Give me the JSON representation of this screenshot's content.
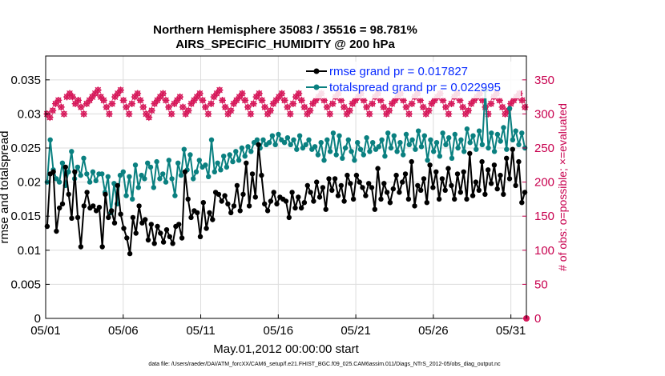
{
  "chart_data": {
    "type": "line",
    "title": [
      "Northern Hemisphere 35083 / 35516 = 98.781%",
      "AIRS_SPECIFIC_HUMIDITY @ 200 hPa"
    ],
    "xlabel": "May.01,2012 00:00:00 start",
    "ylabel": "rmse and totalspread",
    "ylabel_right": "# of obs: o=possible; ×=evaluated",
    "footnote": "data file: /Users/raeder/DAI/ATM_forcXX/CAM6_setup/f.e21.FHIST_BGC.f09_025.CAM6assim.011/Diags_NTrS_2012-05/obs_diag_output.nc",
    "x_tick_labels": [
      "05/01",
      "05/06",
      "05/11",
      "05/16",
      "05/21",
      "05/26",
      "05/31"
    ],
    "x_tick_days": [
      1,
      6,
      11,
      16,
      21,
      26,
      31
    ],
    "xlim": [
      1,
      32
    ],
    "ylim": [
      0,
      0.0385
    ],
    "y_ticks": [
      0,
      0.005,
      0.01,
      0.015,
      0.02,
      0.025,
      0.03,
      0.035
    ],
    "y_tick_labels": [
      "0",
      "0.005",
      "0.01",
      "0.015",
      "0.02",
      "0.025",
      "0.03",
      "0.035"
    ],
    "ylim_right": [
      0,
      385
    ],
    "y_ticks_right": [
      0,
      50,
      100,
      150,
      200,
      250,
      300,
      350
    ],
    "y_tick_labels_right": [
      "0",
      "50",
      "100",
      "150",
      "200",
      "250",
      "300",
      "350"
    ],
    "colors": {
      "rmse": "#000000",
      "spread": "#0a8080",
      "obs": "#d6185a",
      "legend_text": "#0a2cff",
      "right_axis": "#c8004e"
    },
    "series": [
      {
        "name": "rmse grand pr = 0.017827",
        "key": "rmse",
        "values": [
          0.0135,
          0.0212,
          0.0215,
          0.0128,
          0.0162,
          0.0168,
          0.0222,
          0.0182,
          0.0147,
          0.0215,
          0.0148,
          0.0105,
          0.0165,
          0.0185,
          0.0162,
          0.0165,
          0.0158,
          0.0163,
          0.0105,
          0.0182,
          0.0148,
          0.0158,
          0.014,
          0.0195,
          0.0153,
          0.0132,
          0.0118,
          0.0095,
          0.0148,
          0.0125,
          0.0165,
          0.014,
          0.0145,
          0.0115,
          0.0138,
          0.011,
          0.0135,
          0.0125,
          0.0112,
          0.013,
          0.012,
          0.011,
          0.0135,
          0.0138,
          0.0118,
          0.0215,
          0.0175,
          0.0148,
          0.0158,
          0.0155,
          0.012,
          0.017,
          0.0132,
          0.0155,
          0.0145,
          0.0185,
          0.0182,
          0.0172,
          0.018,
          0.0168,
          0.0155,
          0.0165,
          0.0195,
          0.0158,
          0.0182,
          0.0228,
          0.0165,
          0.0212,
          0.0178,
          0.0255,
          0.021,
          0.0168,
          0.0158,
          0.0172,
          0.0185,
          0.0168,
          0.0178,
          0.0175,
          0.0172,
          0.0148,
          0.0185,
          0.0162,
          0.0178,
          0.0162,
          0.017,
          0.0195,
          0.0185,
          0.0172,
          0.02,
          0.0178,
          0.0192,
          0.016,
          0.0205,
          0.0188,
          0.0205,
          0.018,
          0.0195,
          0.0172,
          0.021,
          0.0198,
          0.0175,
          0.021,
          0.02,
          0.0192,
          0.018,
          0.0198,
          0.0192,
          0.016,
          0.022,
          0.0175,
          0.0198,
          0.0185,
          0.017,
          0.019,
          0.021,
          0.0185,
          0.02,
          0.0212,
          0.0175,
          0.023,
          0.0165,
          0.0195,
          0.0188,
          0.0205,
          0.017,
          0.0225,
          0.0192,
          0.0215,
          0.0175,
          0.0205,
          0.0188,
          0.022,
          0.0195,
          0.0175,
          0.0212,
          0.0185,
          0.0215,
          0.0175,
          0.0242,
          0.018,
          0.02,
          0.0188,
          0.023,
          0.0182,
          0.0218,
          0.0198,
          0.0225,
          0.019,
          0.021,
          0.0182,
          0.0235,
          0.0205,
          0.0248,
          0.0195,
          0.023,
          0.017,
          0.0185
        ]
      },
      {
        "name": "totalspread grand pr = 0.022995",
        "key": "spread",
        "values": [
          0.02,
          0.0262,
          0.0218,
          0.0205,
          0.02,
          0.0228,
          0.0195,
          0.0215,
          0.0245,
          0.0205,
          0.0222,
          0.021,
          0.0235,
          0.0212,
          0.02,
          0.0215,
          0.0202,
          0.0212,
          0.0212,
          0.0185,
          0.0208,
          0.0155,
          0.0198,
          0.0168,
          0.021,
          0.0215,
          0.018,
          0.0208,
          0.0175,
          0.0225,
          0.0192,
          0.021,
          0.0205,
          0.0228,
          0.0222,
          0.0192,
          0.023,
          0.0205,
          0.0212,
          0.02,
          0.0232,
          0.0205,
          0.018,
          0.0228,
          0.021,
          0.0248,
          0.0218,
          0.024,
          0.0205,
          0.0215,
          0.0232,
          0.0222,
          0.0225,
          0.0208,
          0.0262,
          0.0215,
          0.0228,
          0.0218,
          0.0238,
          0.0222,
          0.024,
          0.023,
          0.0245,
          0.0232,
          0.025,
          0.0238,
          0.0252,
          0.0245,
          0.0258,
          0.0262,
          0.025,
          0.0262,
          0.0255,
          0.0258,
          0.0268,
          0.0255,
          0.027,
          0.0262,
          0.0258,
          0.0265,
          0.0255,
          0.0262,
          0.0248,
          0.0268,
          0.025,
          0.0255,
          0.0262,
          0.0248,
          0.0252,
          0.024,
          0.0258,
          0.0232,
          0.0262,
          0.0245,
          0.0272,
          0.024,
          0.0268,
          0.0235,
          0.025,
          0.0262,
          0.0245,
          0.0232,
          0.0258,
          0.0248,
          0.024,
          0.0265,
          0.0245,
          0.0258,
          0.0248,
          0.0252,
          0.0262,
          0.0238,
          0.0272,
          0.025,
          0.0268,
          0.0245,
          0.0258,
          0.024,
          0.027,
          0.0255,
          0.0262,
          0.0248,
          0.0275,
          0.0252,
          0.0268,
          0.0232,
          0.0262,
          0.0245,
          0.0258,
          0.0238,
          0.0272,
          0.0255,
          0.0265,
          0.0235,
          0.027,
          0.025,
          0.0262,
          0.0245,
          0.0278,
          0.0258,
          0.0268,
          0.0248,
          0.0275,
          0.0255,
          0.0335,
          0.025,
          0.0272,
          0.0245,
          0.027,
          0.026,
          0.028,
          0.0248,
          0.0308,
          0.0262,
          0.0275,
          0.0255,
          0.0272,
          0.025
        ]
      },
      {
        "name": "obs possible/evaluated",
        "key": "obs",
        "values": [
          300,
          295,
          305,
          315,
          320,
          310,
          300,
          325,
          330,
          325,
          315,
          320,
          310,
          300,
          315,
          320,
          325,
          330,
          335,
          325,
          320,
          310,
          300,
          315,
          325,
          330,
          335,
          320,
          310,
          300,
          315,
          325,
          330,
          320,
          310,
          300,
          295,
          305,
          315,
          320,
          325,
          330,
          320,
          310,
          300,
          315,
          320,
          325,
          310,
          300,
          305,
          315,
          320,
          325,
          330,
          320,
          310,
          300,
          315,
          325,
          330,
          335,
          320,
          310,
          300,
          305,
          315,
          320,
          325,
          330,
          320,
          310,
          300,
          315,
          325,
          330,
          320,
          310,
          300,
          305,
          315,
          320,
          325,
          330,
          320,
          310,
          300,
          315,
          325,
          330,
          320,
          310,
          300,
          305,
          315,
          320,
          325,
          330,
          320,
          310,
          300,
          315,
          325,
          330,
          320,
          310,
          300,
          305,
          315,
          320,
          325,
          330,
          320,
          310,
          300,
          315,
          325,
          330,
          320,
          310,
          300,
          305,
          315,
          320,
          325,
          330,
          320,
          310,
          300,
          315,
          325,
          330,
          320,
          310,
          300,
          305,
          315,
          320,
          325,
          330,
          320,
          310,
          300,
          315,
          325,
          330,
          320,
          310,
          300,
          305,
          315,
          320,
          325,
          330,
          320,
          310,
          300,
          315,
          325,
          330,
          320,
          310,
          300,
          305,
          315,
          320,
          325,
          330,
          320,
          310
        ]
      }
    ]
  }
}
